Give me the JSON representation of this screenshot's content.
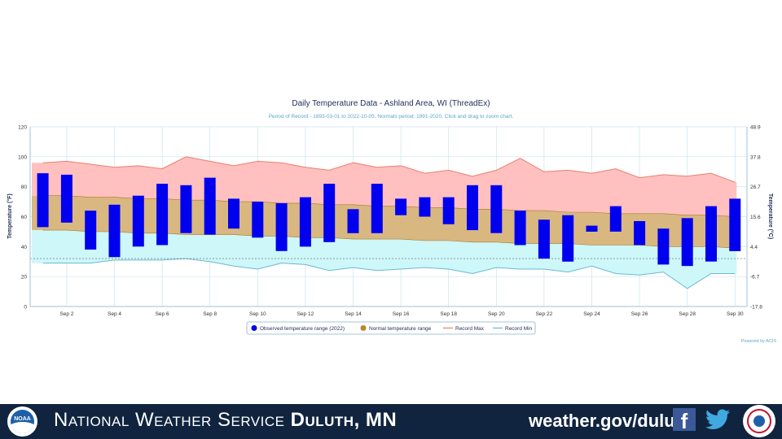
{
  "chart_data": {
    "type": "bar",
    "title": "Daily Temperature Data - Ashland Area, WI (ThreadEx)",
    "subtitle": "Period of Record - 1893-03-01 to 2022-10-05. Normals period: 1991-2020. Click and drag to zoom chart.",
    "ylabel": "Temperature (°F)",
    "ylabel_right": "Temperature (°C)",
    "ylim": [
      0,
      120
    ],
    "yticks": [
      0,
      20,
      40,
      60,
      80,
      100,
      120
    ],
    "yticks_right": [
      "-17.8",
      "-6.7",
      "4.4",
      "15.6",
      "26.7",
      "37.8",
      "48.9"
    ],
    "x": [
      1,
      2,
      3,
      4,
      5,
      6,
      7,
      8,
      9,
      10,
      11,
      12,
      13,
      14,
      15,
      16,
      17,
      18,
      19,
      20,
      21,
      22,
      23,
      24,
      25,
      26,
      27,
      28,
      29,
      30
    ],
    "xticks": [
      2,
      4,
      6,
      8,
      10,
      12,
      14,
      16,
      18,
      20,
      22,
      24,
      26,
      28,
      30
    ],
    "xtick_labels": [
      "Sep 2",
      "Sep 4",
      "Sep 6",
      "Sep 8",
      "Sep 10",
      "Sep 12",
      "Sep 14",
      "Sep 16",
      "Sep 18",
      "Sep 20",
      "Sep 22",
      "Sep 24",
      "Sep 26",
      "Sep 28",
      "Sep 30"
    ],
    "observed_max": [
      89,
      88,
      64,
      68,
      74,
      82,
      81,
      86,
      72,
      70,
      69,
      73,
      82,
      65,
      82,
      72,
      73,
      73,
      81,
      81,
      64,
      58,
      61,
      54,
      67,
      57,
      52,
      59,
      67,
      72
    ],
    "observed_min": [
      53,
      56,
      38,
      33,
      40,
      41,
      49,
      48,
      52,
      46,
      37,
      40,
      43,
      49,
      49,
      61,
      60,
      55,
      51,
      49,
      41,
      32,
      30,
      50,
      50,
      41,
      28,
      27,
      30,
      37
    ],
    "normal_max": [
      74,
      74,
      73,
      73,
      72,
      72,
      71,
      71,
      70,
      70,
      69,
      69,
      68,
      68,
      67,
      67,
      66,
      66,
      65,
      65,
      64,
      64,
      63,
      63,
      62,
      62,
      62,
      61,
      61,
      60
    ],
    "normal_min": [
      51,
      51,
      50,
      50,
      49,
      49,
      48,
      48,
      48,
      47,
      47,
      46,
      46,
      45,
      45,
      45,
      44,
      44,
      43,
      43,
      42,
      42,
      42,
      41,
      41,
      41,
      40,
      40,
      40,
      39
    ],
    "record_max": [
      96,
      97,
      95,
      93,
      94,
      92,
      100,
      97,
      94,
      97,
      96,
      93,
      91,
      96,
      93,
      94,
      89,
      91,
      87,
      91,
      99,
      90,
      91,
      89,
      92,
      86,
      88,
      87,
      89,
      83
    ],
    "record_min": [
      29,
      29,
      29,
      31,
      31,
      31,
      32,
      30,
      27,
      25,
      29,
      28,
      24,
      26,
      24,
      25,
      26,
      25,
      22,
      26,
      25,
      25,
      23,
      27,
      22,
      21,
      23,
      12,
      22,
      22
    ],
    "reference_line": 32,
    "series": [
      {
        "name": "Observed temperature range (2022)",
        "color": "#0000ee",
        "marker": "circle"
      },
      {
        "name": "Normal temperature range",
        "color": "#b8862b",
        "marker": "circle"
      },
      {
        "name": "Record Max",
        "color": "#e8806e",
        "marker": "line"
      },
      {
        "name": "Record Min",
        "color": "#6cb8d4",
        "marker": "line"
      }
    ],
    "colors": {
      "record_fill": "#ffc0bf",
      "normal_fill": "#d9b780",
      "min_fill": "#cdf7f8",
      "grid": "#cde3ec",
      "reference": "#666666"
    },
    "credit": "Powered by ACIS"
  },
  "footer": {
    "title_normal": "National Weather Service ",
    "title_bold": "Duluth, MN",
    "website": "weather.gov/duluth",
    "facebook_icon": "f",
    "noaa_label": "NOAA",
    "icons": [
      "noaa-logo",
      "facebook-icon",
      "twitter-icon",
      "nws-logo"
    ]
  }
}
